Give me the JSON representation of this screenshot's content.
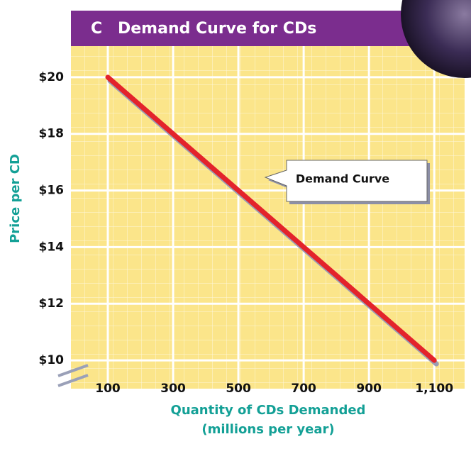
{
  "chart_data": {
    "type": "line",
    "panel_label": "C",
    "title": "Demand Curve for CDs",
    "y_label": "Price per CD",
    "x_label": [
      "Quantity of CDs Demanded",
      "(millions per year)"
    ],
    "x": [
      100,
      1100
    ],
    "series": [
      {
        "name": "Demand Curve",
        "color": "#e3232b",
        "values": [
          20,
          10
        ]
      }
    ],
    "xlim": [
      -13,
      1193
    ],
    "ylim": [
      9,
      21.1
    ],
    "xticks": [
      100,
      300,
      500,
      700,
      900,
      {
        "value": 1100,
        "label": "1,100"
      }
    ],
    "yticks": [
      {
        "value": 10,
        "label": "$10"
      },
      {
        "value": 12,
        "label": "$12"
      },
      {
        "value": 14,
        "label": "$14"
      },
      {
        "value": 16,
        "label": "$16"
      },
      {
        "value": 18,
        "label": "$18"
      },
      {
        "value": 20,
        "label": "$20"
      }
    ],
    "grid": true
  }
}
